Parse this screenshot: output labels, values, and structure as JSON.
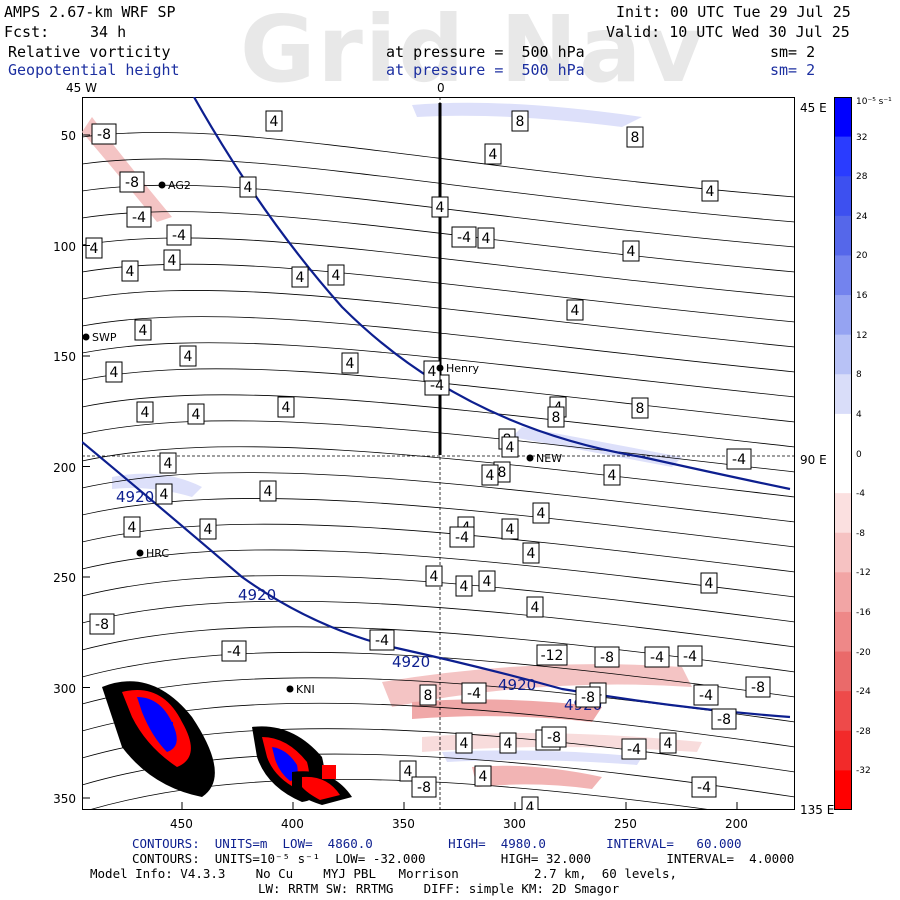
{
  "header": {
    "title": "AMPS 2.67-km WRF SP",
    "fcst_label": "Fcst:",
    "fcst_value": "34 h",
    "init": "Init: 00 UTC Tue 29 Jul 25",
    "valid": "Valid: 10 UTC Wed 30 Jul 25",
    "field1_name": "Relative vorticity",
    "field1_pressure": "at pressure =  500 hPa",
    "field1_sm": "sm= 2",
    "field2_name": "Geopotential height",
    "field2_pressure": "at pressure =  500 hPa",
    "field2_sm": "sm= 2",
    "watermark": "Grid Nav"
  },
  "map": {
    "meridian_labels": {
      "top_left": "45 W",
      "top_mid": "0",
      "right_top": "45 E",
      "right_mid": "90 E",
      "right_bottom": "135 E"
    },
    "y_ticks": [
      "50",
      "100",
      "150",
      "200",
      "250",
      "300",
      "350"
    ],
    "x_ticks": [
      "450",
      "400",
      "350",
      "300",
      "250",
      "200"
    ],
    "stations": [
      "AG2",
      "SWP",
      "Henry",
      "NEW",
      "HRC",
      "KNI"
    ],
    "height_contour_labels": [
      "4920",
      "4920",
      "4920",
      "4920",
      "4920"
    ],
    "vort_box_labels": [
      "-8",
      "4",
      "8",
      "8",
      "4",
      "-8",
      "4",
      "4",
      "4",
      "-4",
      "-4",
      "4",
      "-4",
      "4",
      "4",
      "4",
      "4",
      "4",
      "4",
      "4",
      "4",
      "4",
      "4",
      "4",
      "-4",
      "4",
      "4",
      "4",
      "4",
      "8",
      "4",
      "8",
      "8",
      "4",
      "-4",
      "4",
      "8",
      "4",
      "4",
      "4",
      "4",
      "4",
      "4",
      "4",
      "4",
      "4",
      "-4",
      "4",
      "4",
      "4",
      "4",
      "4",
      "4",
      "-8",
      "-4",
      "-4",
      "-4",
      "-12",
      "-8",
      "-4",
      "-4",
      "4",
      "8",
      "-4",
      "-8",
      "-8",
      "-8",
      "4",
      "4",
      "-4",
      "-4",
      "4",
      "4",
      "4",
      "4",
      "-8",
      "-8",
      "-4"
    ],
    "colors": {
      "height_contour": "#0d1f8f",
      "cross_section": "#000000"
    }
  },
  "colorbar": {
    "unit": "10⁻⁵ s⁻¹",
    "labels": [
      "32",
      "28",
      "24",
      "20",
      "16",
      "12",
      "8",
      "4",
      "0",
      "-4",
      "-8",
      "-12",
      "-16",
      "-20",
      "-24",
      "-28",
      "-32"
    ],
    "colors": [
      "#0000ff",
      "#2a3cff",
      "#3d50f0",
      "#5567ea",
      "#7383ee",
      "#95a3f2",
      "#b8c2f6",
      "#d9ddf9",
      "#ffffff",
      "#ffffff",
      "#fbe0e0",
      "#f6c2c2",
      "#f2a5a5",
      "#ee8888",
      "#ea6a6a",
      "#ee4a4a",
      "#f22a2a",
      "#ff0000"
    ]
  },
  "footer": {
    "line1": "CONTOURS:  UNITS=m  LOW=  4860.0          HIGH=  4980.0        INTERVAL=   60.000",
    "line2": "CONTOURS:  UNITS=10⁻⁵ s⁻¹  LOW= -32.000          HIGH= 32.000          INTERVAL=  4.0000",
    "line3": "Model Info: V4.3.3    No Cu    MYJ PBL   Morrison          2.7 km,  60 levels,",
    "line4": "LW: RRTM SW: RRTMG    DIFF: simple KM: 2D Smagor"
  }
}
